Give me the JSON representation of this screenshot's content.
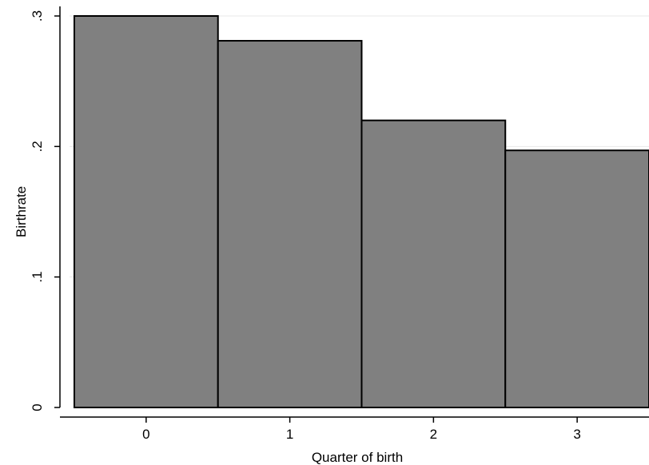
{
  "chart_data": {
    "type": "bar",
    "title": "",
    "xlabel": "Quarter of birth",
    "ylabel": "Birthrate",
    "categories": [
      "0",
      "1",
      "2",
      "3"
    ],
    "values": [
      0.3,
      0.281,
      0.22,
      0.197
    ],
    "ylim": [
      0,
      0.3
    ],
    "xlim": [
      -0.6,
      3.5
    ],
    "y_ticks": [
      0,
      0.1,
      0.2,
      0.3
    ],
    "y_tick_labels": [
      "0",
      ".1",
      ".2",
      ".3"
    ],
    "x_ticks": [
      0,
      1,
      2,
      3
    ],
    "x_tick_labels": [
      "0",
      "1",
      "2",
      "3"
    ],
    "grid": true,
    "legend": "none",
    "colors": {
      "bar_fill": "#808080",
      "bar_stroke": "#000000",
      "grid": "#eaeaea",
      "axis": "#000000"
    }
  }
}
